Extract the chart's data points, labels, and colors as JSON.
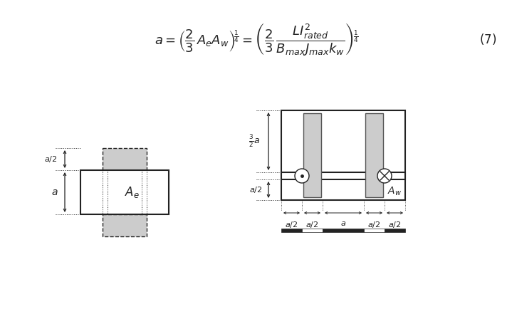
{
  "fig_width": 7.19,
  "fig_height": 4.41,
  "dpi": 100,
  "bg_color": "#ffffff",
  "gray_fill": "#cccccc",
  "line_color": "#222222",
  "lw_main": 1.5,
  "lw_thin": 0.8,
  "lw_dot": 0.7
}
